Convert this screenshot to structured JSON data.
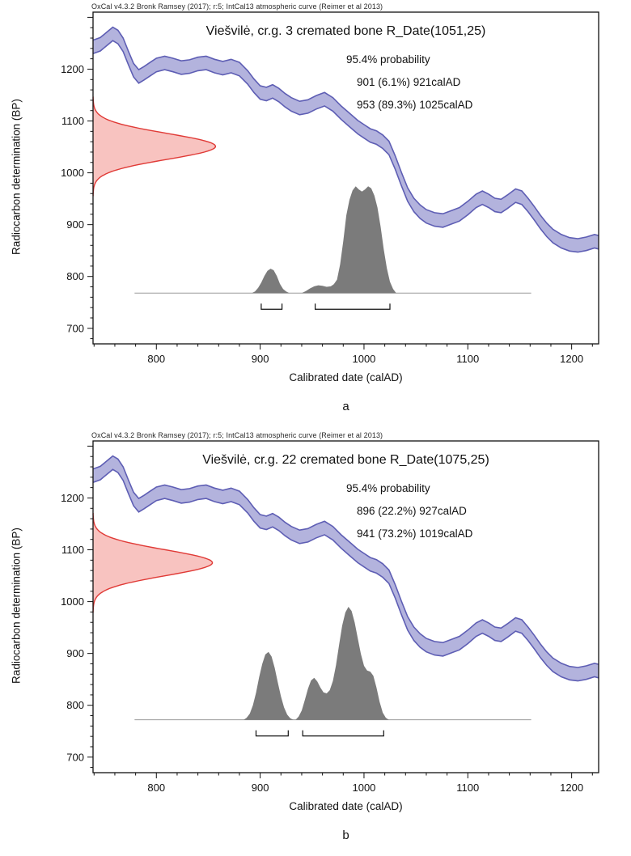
{
  "figure": {
    "background": "#ffffff"
  },
  "chart_data": [
    {
      "type": "line",
      "panel_label": "a",
      "oxcal_header": "OxCal v4.3.2 Bronk Ramsey (2017); r:5; IntCal13 atmospheric curve (Reimer et al 2013)",
      "title": "Viešvilė, cr.g. 3 cremated bone R_Date(1051,25)",
      "probability_lines": [
        "95.4% probability",
        "901 (6.1%) 921calAD",
        "953 (89.3%) 1025calAD"
      ],
      "xlabel": "Calibrated date (calAD)",
      "ylabel": "Radiocarbon determination (BP)",
      "x_range": [
        739,
        1226
      ],
      "y_range": [
        670,
        1310
      ],
      "x_ticks": [
        800,
        900,
        1000,
        1100,
        1200
      ],
      "y_ticks": [
        700,
        800,
        900,
        1000,
        1100,
        1200
      ],
      "r_date": {
        "mean": 1051,
        "sigma": 25,
        "amp_years": 118
      },
      "band_halfwidth": 13,
      "calibration_curve": [
        [
          739,
          1243
        ],
        [
          746,
          1248
        ],
        [
          752,
          1258
        ],
        [
          758,
          1268
        ],
        [
          763,
          1262
        ],
        [
          768,
          1247
        ],
        [
          773,
          1222
        ],
        [
          778,
          1198
        ],
        [
          783,
          1186
        ],
        [
          788,
          1192
        ],
        [
          794,
          1200
        ],
        [
          800,
          1208
        ],
        [
          808,
          1212
        ],
        [
          816,
          1208
        ],
        [
          824,
          1203
        ],
        [
          832,
          1205
        ],
        [
          840,
          1210
        ],
        [
          848,
          1212
        ],
        [
          856,
          1206
        ],
        [
          864,
          1202
        ],
        [
          872,
          1206
        ],
        [
          880,
          1200
        ],
        [
          888,
          1184
        ],
        [
          894,
          1168
        ],
        [
          900,
          1155
        ],
        [
          906,
          1152
        ],
        [
          912,
          1157
        ],
        [
          918,
          1150
        ],
        [
          924,
          1140
        ],
        [
          930,
          1132
        ],
        [
          938,
          1125
        ],
        [
          946,
          1128
        ],
        [
          954,
          1136
        ],
        [
          962,
          1142
        ],
        [
          970,
          1132
        ],
        [
          978,
          1116
        ],
        [
          986,
          1102
        ],
        [
          994,
          1088
        ],
        [
          1000,
          1080
        ],
        [
          1006,
          1072
        ],
        [
          1012,
          1068
        ],
        [
          1018,
          1060
        ],
        [
          1024,
          1048
        ],
        [
          1030,
          1020
        ],
        [
          1036,
          988
        ],
        [
          1042,
          958
        ],
        [
          1048,
          938
        ],
        [
          1054,
          925
        ],
        [
          1060,
          916
        ],
        [
          1068,
          910
        ],
        [
          1076,
          908
        ],
        [
          1084,
          914
        ],
        [
          1092,
          920
        ],
        [
          1100,
          932
        ],
        [
          1108,
          946
        ],
        [
          1114,
          952
        ],
        [
          1120,
          946
        ],
        [
          1126,
          938
        ],
        [
          1132,
          936
        ],
        [
          1138,
          944
        ],
        [
          1146,
          956
        ],
        [
          1152,
          952
        ],
        [
          1158,
          938
        ],
        [
          1164,
          922
        ],
        [
          1170,
          905
        ],
        [
          1176,
          890
        ],
        [
          1182,
          878
        ],
        [
          1190,
          868
        ],
        [
          1198,
          862
        ],
        [
          1206,
          860
        ],
        [
          1214,
          863
        ],
        [
          1222,
          868
        ],
        [
          1226,
          866
        ]
      ],
      "posterior": {
        "baseline_bp": 768,
        "baseline_from": 779,
        "baseline_to": 1161,
        "bumps": [
          [
            [
              892,
              0
            ],
            [
              895,
              3
            ],
            [
              898,
              10
            ],
            [
              901,
              20
            ],
            [
              904,
              33
            ],
            [
              907,
              43
            ],
            [
              910,
              47
            ],
            [
              913,
              44
            ],
            [
              916,
              33
            ],
            [
              919,
              18
            ],
            [
              922,
              8
            ],
            [
              925,
              3
            ],
            [
              928,
              0
            ]
          ],
          [
            [
              940,
              0
            ],
            [
              944,
              4
            ],
            [
              948,
              9
            ],
            [
              952,
              13
            ],
            [
              956,
              15
            ],
            [
              960,
              14
            ],
            [
              964,
              12
            ],
            [
              968,
              13
            ],
            [
              971,
              17
            ],
            [
              974,
              26
            ],
            [
              977,
              55
            ],
            [
              980,
              100
            ],
            [
              983,
              150
            ],
            [
              986,
              180
            ],
            [
              989,
              198
            ],
            [
              992,
              206
            ],
            [
              995,
              200
            ],
            [
              998,
              196
            ],
            [
              1001,
              200
            ],
            [
              1004,
              206
            ],
            [
              1007,
              202
            ],
            [
              1010,
              188
            ],
            [
              1013,
              165
            ],
            [
              1016,
              128
            ],
            [
              1019,
              85
            ],
            [
              1022,
              48
            ],
            [
              1025,
              22
            ],
            [
              1028,
              8
            ],
            [
              1031,
              0
            ]
          ]
        ]
      },
      "ranges_calAD": [
        [
          901,
          921
        ],
        [
          953,
          1025
        ]
      ],
      "colors": {
        "band_fill": "#b3b3dd",
        "band_edge": "#5e5eb4",
        "likelihood_fill": "#f8c3c0",
        "likelihood_edge": "#e03a36",
        "posterior_fill": "#7b7b7b",
        "axis": "#111111",
        "baseline": "#9a9a9a"
      }
    },
    {
      "type": "line",
      "panel_label": "b",
      "oxcal_header": "OxCal v4.3.2 Bronk Ramsey (2017); r:5; IntCal13 atmospheric curve (Reimer et al 2013)",
      "title": "Viešvilė, cr.g. 22 cremated bone R_Date(1075,25)",
      "probability_lines": [
        "95.4% probability",
        "896 (22.2%) 927calAD",
        "941 (73.2%) 1019calAD"
      ],
      "xlabel": "Calibrated date (calAD)",
      "ylabel": "Radiocarbon determination (BP)",
      "x_range": [
        739,
        1226
      ],
      "y_range": [
        670,
        1310
      ],
      "x_ticks": [
        800,
        900,
        1000,
        1100,
        1200
      ],
      "y_ticks": [
        700,
        800,
        900,
        1000,
        1100,
        1200
      ],
      "r_date": {
        "mean": 1075,
        "sigma": 25,
        "amp_years": 115
      },
      "band_halfwidth": 13,
      "calibration_curve": [
        [
          739,
          1243
        ],
        [
          746,
          1248
        ],
        [
          752,
          1258
        ],
        [
          758,
          1268
        ],
        [
          763,
          1262
        ],
        [
          768,
          1247
        ],
        [
          773,
          1222
        ],
        [
          778,
          1198
        ],
        [
          783,
          1186
        ],
        [
          788,
          1192
        ],
        [
          794,
          1200
        ],
        [
          800,
          1208
        ],
        [
          808,
          1212
        ],
        [
          816,
          1208
        ],
        [
          824,
          1203
        ],
        [
          832,
          1205
        ],
        [
          840,
          1210
        ],
        [
          848,
          1212
        ],
        [
          856,
          1206
        ],
        [
          864,
          1202
        ],
        [
          872,
          1206
        ],
        [
          880,
          1200
        ],
        [
          888,
          1184
        ],
        [
          894,
          1168
        ],
        [
          900,
          1155
        ],
        [
          906,
          1152
        ],
        [
          912,
          1157
        ],
        [
          918,
          1150
        ],
        [
          924,
          1140
        ],
        [
          930,
          1132
        ],
        [
          938,
          1125
        ],
        [
          946,
          1128
        ],
        [
          954,
          1136
        ],
        [
          962,
          1142
        ],
        [
          970,
          1132
        ],
        [
          978,
          1116
        ],
        [
          986,
          1102
        ],
        [
          994,
          1088
        ],
        [
          1000,
          1080
        ],
        [
          1006,
          1072
        ],
        [
          1012,
          1068
        ],
        [
          1018,
          1060
        ],
        [
          1024,
          1048
        ],
        [
          1030,
          1020
        ],
        [
          1036,
          988
        ],
        [
          1042,
          958
        ],
        [
          1048,
          938
        ],
        [
          1054,
          925
        ],
        [
          1060,
          916
        ],
        [
          1068,
          910
        ],
        [
          1076,
          908
        ],
        [
          1084,
          914
        ],
        [
          1092,
          920
        ],
        [
          1100,
          932
        ],
        [
          1108,
          946
        ],
        [
          1114,
          952
        ],
        [
          1120,
          946
        ],
        [
          1126,
          938
        ],
        [
          1132,
          936
        ],
        [
          1138,
          944
        ],
        [
          1146,
          956
        ],
        [
          1152,
          952
        ],
        [
          1158,
          938
        ],
        [
          1164,
          922
        ],
        [
          1170,
          905
        ],
        [
          1176,
          890
        ],
        [
          1182,
          878
        ],
        [
          1190,
          868
        ],
        [
          1198,
          862
        ],
        [
          1206,
          860
        ],
        [
          1214,
          863
        ],
        [
          1222,
          868
        ],
        [
          1226,
          866
        ]
      ],
      "posterior": {
        "baseline_bp": 772,
        "baseline_from": 779,
        "baseline_to": 1161,
        "bumps": [
          [
            [
              884,
              0
            ],
            [
              887,
              4
            ],
            [
              890,
              12
            ],
            [
              893,
              28
            ],
            [
              896,
              52
            ],
            [
              899,
              82
            ],
            [
              902,
              108
            ],
            [
              905,
              126
            ],
            [
              908,
              131
            ],
            [
              911,
              122
            ],
            [
              914,
              100
            ],
            [
              917,
              72
            ],
            [
              920,
              45
            ],
            [
              923,
              24
            ],
            [
              926,
              10
            ],
            [
              929,
              3
            ],
            [
              932,
              0
            ]
          ],
          [
            [
              934,
              0
            ],
            [
              937,
              6
            ],
            [
              940,
              18
            ],
            [
              943,
              38
            ],
            [
              946,
              60
            ],
            [
              949,
              76
            ],
            [
              952,
              81
            ],
            [
              955,
              74
            ],
            [
              958,
              62
            ],
            [
              961,
              53
            ],
            [
              964,
              51
            ],
            [
              967,
              57
            ],
            [
              970,
              75
            ],
            [
              973,
              105
            ],
            [
              976,
              145
            ],
            [
              979,
              182
            ],
            [
              982,
              207
            ],
            [
              985,
              218
            ],
            [
              988,
              210
            ],
            [
              991,
              188
            ],
            [
              994,
              157
            ],
            [
              997,
              127
            ],
            [
              1000,
              104
            ],
            [
              1003,
              95
            ],
            [
              1006,
              93
            ],
            [
              1009,
              85
            ],
            [
              1012,
              62
            ],
            [
              1015,
              35
            ],
            [
              1018,
              14
            ],
            [
              1021,
              4
            ],
            [
              1024,
              0
            ]
          ]
        ]
      },
      "ranges_calAD": [
        [
          896,
          927
        ],
        [
          941,
          1019
        ]
      ],
      "colors": {
        "band_fill": "#b3b3dd",
        "band_edge": "#5e5eb4",
        "likelihood_fill": "#f8c3c0",
        "likelihood_edge": "#e03a36",
        "posterior_fill": "#7b7b7b",
        "axis": "#111111",
        "baseline": "#9a9a9a"
      }
    }
  ]
}
